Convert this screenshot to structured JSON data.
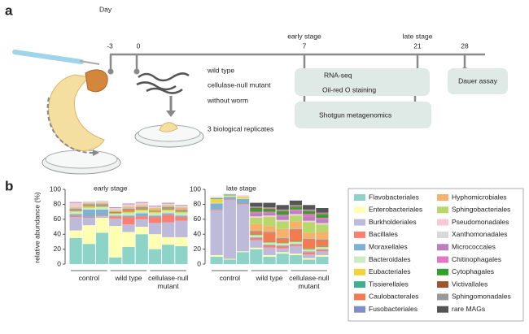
{
  "panel_a": {
    "letter": "a",
    "day_label": "Day",
    "days": [
      "-3",
      "0",
      "7",
      "21",
      "28"
    ],
    "stages": [
      "early stage",
      "late stage"
    ],
    "conditions": [
      "wild type",
      "cellulase-null mutant",
      "without worm"
    ],
    "replicates": "3 biological replicates",
    "assays": [
      "RNA-seq",
      "Oil-red O staining",
      "Shotgun metagenomics",
      "Dauer assay"
    ]
  },
  "panel_b": {
    "letter": "b"
  },
  "chart_data": [
    {
      "type": "stacked_bar",
      "title": "early stage",
      "y_label": "relative abundance (%)",
      "ylim": [
        0,
        100
      ],
      "yticks": [
        0,
        20,
        40,
        60,
        80,
        100
      ],
      "groups": [
        {
          "name": "control",
          "size": 3
        },
        {
          "name": "wild type",
          "size": 3
        },
        {
          "name": "cellulase-null mutant",
          "size": 3
        }
      ],
      "series": [
        {
          "name": "Flavobacteriales",
          "color": "#8dd3c7",
          "values": [
            35,
            27,
            42,
            9,
            23,
            40,
            20,
            26,
            24
          ]
        },
        {
          "name": "Enterobacteriales",
          "color": "#ffffb3",
          "values": [
            10,
            25,
            20,
            42,
            20,
            10,
            20,
            10,
            12
          ]
        },
        {
          "name": "Burkholderiales",
          "color": "#bebada",
          "values": [
            18,
            10,
            2,
            10,
            10,
            10,
            15,
            20,
            22
          ]
        },
        {
          "name": "Bacillales",
          "color": "#fb8072",
          "values": [
            2,
            1,
            1,
            3,
            10,
            4,
            8,
            10,
            5
          ]
        },
        {
          "name": "Moraxellales",
          "color": "#80b1d3",
          "values": [
            2,
            10,
            8,
            1,
            2,
            4,
            2,
            2,
            2
          ]
        },
        {
          "name": "Bacteroidales",
          "color": "#ccebc5",
          "values": [
            3,
            2,
            3,
            2,
            3,
            3,
            3,
            3,
            3
          ]
        },
        {
          "name": "Eubacteriales",
          "color": "#f2d43a",
          "values": [
            1,
            2,
            1,
            1,
            2,
            2,
            2,
            2,
            2
          ]
        },
        {
          "name": "Tissierellales",
          "color": "#3fae8f",
          "values": [
            1,
            1,
            1,
            1,
            1,
            1,
            1,
            1,
            1
          ]
        },
        {
          "name": "Caulobacterales",
          "color": "#f47a50",
          "values": [
            1,
            1,
            1,
            1,
            2,
            1,
            1,
            1,
            1
          ]
        },
        {
          "name": "Fusobacteriales",
          "color": "#7e8fc8",
          "values": [
            1,
            1,
            1,
            0,
            1,
            1,
            0,
            1,
            1
          ]
        },
        {
          "name": "Hyphomicrobiales",
          "color": "#f6b26b",
          "values": [
            1,
            1,
            1,
            1,
            2,
            2,
            2,
            2,
            2
          ]
        },
        {
          "name": "Sphingobacteriales",
          "color": "#b8d86b",
          "values": [
            1,
            1,
            1,
            1,
            1,
            1,
            1,
            1,
            1
          ]
        },
        {
          "name": "Pseudomonadales",
          "color": "#fbc7d4",
          "values": [
            5,
            1,
            2,
            2,
            2,
            2,
            1,
            1,
            1
          ]
        },
        {
          "name": "Xanthomonadales",
          "color": "#d9d9d9",
          "values": [
            1,
            1,
            1,
            1,
            1,
            1,
            1,
            1,
            1
          ]
        },
        {
          "name": "Micrococcales",
          "color": "#bc80bd",
          "values": [
            1,
            0,
            0,
            1,
            1,
            1,
            1,
            1,
            1
          ]
        },
        {
          "name": "Chitinophagales",
          "color": "#e377c2",
          "values": [
            0,
            0,
            0,
            0,
            0,
            0,
            0,
            0,
            0
          ]
        },
        {
          "name": "Cytophagales",
          "color": "#33a02c",
          "values": [
            0,
            0,
            0,
            0,
            0,
            0,
            0,
            0,
            0
          ]
        },
        {
          "name": "Victivallales",
          "color": "#a0522d",
          "values": [
            0,
            0,
            0,
            0,
            0,
            0,
            0,
            0,
            0
          ]
        },
        {
          "name": "Sphingomonadales",
          "color": "#999999",
          "values": [
            0,
            0,
            0,
            0,
            0,
            0,
            0,
            0,
            0
          ]
        },
        {
          "name": "rare MAGs",
          "color": "#555555",
          "values": [
            0,
            0,
            0,
            0,
            0,
            0,
            0,
            0,
            0
          ]
        }
      ]
    },
    {
      "type": "stacked_bar",
      "title": "late stage",
      "ylim": [
        0,
        100
      ],
      "yticks": [
        0,
        20,
        40,
        60,
        80,
        100
      ],
      "groups": [
        {
          "name": "control",
          "size": 3
        },
        {
          "name": "wild type",
          "size": 3
        },
        {
          "name": "cellulase-null mutant",
          "size": 3
        }
      ],
      "series": [
        {
          "values": [
            10,
            6,
            16,
            20,
            10,
            14,
            12,
            6,
            10
          ]
        },
        {
          "values": [
            2,
            1,
            1,
            2,
            2,
            2,
            2,
            2,
            2
          ]
        },
        {
          "values": [
            60,
            79,
            63,
            10,
            10,
            5,
            10,
            5,
            5
          ]
        },
        {
          "values": [
            1,
            1,
            1,
            3,
            3,
            3,
            2,
            3,
            2
          ]
        },
        {
          "values": [
            8,
            3,
            6,
            1,
            1,
            1,
            1,
            1,
            1
          ]
        },
        {
          "values": [
            1,
            1,
            1,
            2,
            2,
            2,
            2,
            2,
            2
          ]
        },
        {
          "values": [
            5,
            1,
            2,
            1,
            1,
            1,
            1,
            1,
            1
          ]
        },
        {
          "values": [
            1,
            1,
            0,
            1,
            1,
            1,
            1,
            1,
            1
          ]
        },
        {
          "values": [
            0,
            0,
            0,
            3,
            12,
            5,
            15,
            12,
            8
          ]
        },
        {
          "values": [
            0,
            0,
            0,
            1,
            1,
            1,
            1,
            1,
            1
          ]
        },
        {
          "values": [
            0,
            0,
            0,
            10,
            8,
            12,
            10,
            8,
            10
          ]
        },
        {
          "values": [
            0,
            0,
            0,
            8,
            12,
            10,
            8,
            14,
            10
          ]
        },
        {
          "values": [
            1,
            1,
            1,
            1,
            1,
            1,
            1,
            1,
            1
          ]
        },
        {
          "values": [
            1,
            0,
            1,
            1,
            1,
            1,
            1,
            1,
            1
          ]
        },
        {
          "values": [
            0,
            0,
            0,
            4,
            3,
            5,
            4,
            6,
            5
          ]
        },
        {
          "values": [
            0,
            0,
            0,
            2,
            2,
            2,
            2,
            3,
            2
          ]
        },
        {
          "values": [
            0,
            0,
            0,
            4,
            3,
            4,
            3,
            3,
            4
          ]
        },
        {
          "values": [
            0,
            0,
            0,
            1,
            1,
            1,
            1,
            1,
            1
          ]
        },
        {
          "values": [
            0,
            0,
            0,
            2,
            2,
            2,
            2,
            2,
            2
          ]
        },
        {
          "values": [
            0,
            0,
            0,
            5,
            6,
            6,
            6,
            6,
            6
          ]
        }
      ]
    }
  ]
}
